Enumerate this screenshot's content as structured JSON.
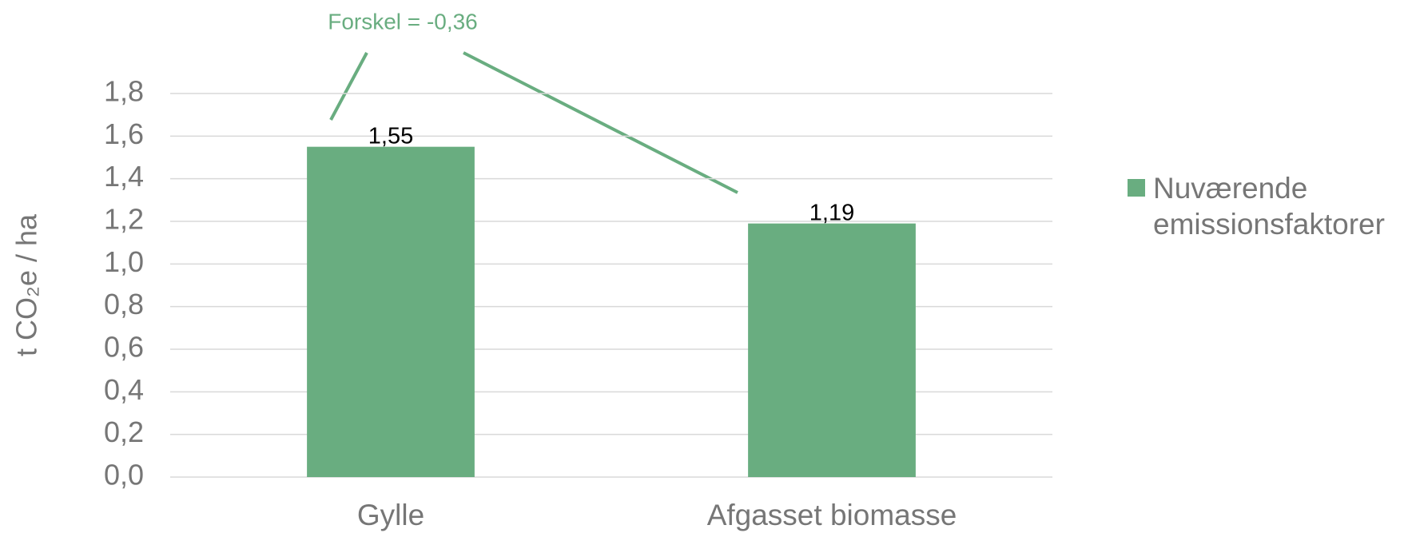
{
  "chart_data": {
    "type": "bar",
    "y_label": "t CO₂e / ha",
    "annotation": "Forskel = -0,36",
    "categories": [
      "Gylle",
      "Afgasset biomasse"
    ],
    "series": [
      {
        "name": "Nuværende emissionsfaktorer",
        "color": "#69ad80",
        "values": [
          1.55,
          1.19
        ],
        "value_labels": [
          "1,55",
          "1,19"
        ]
      }
    ],
    "ylim": [
      0,
      1.8
    ],
    "yticks": [
      {
        "value": 0,
        "label": "0,0"
      },
      {
        "value": 0.2,
        "label": "0,2"
      },
      {
        "value": 0.4,
        "label": "0,4"
      },
      {
        "value": 0.6,
        "label": "0,6"
      },
      {
        "value": 0.8,
        "label": "0,8"
      },
      {
        "value": 1.0,
        "label": "1,0"
      },
      {
        "value": 1.2,
        "label": "1,2"
      },
      {
        "value": 1.4,
        "label": "1,4"
      },
      {
        "value": 1.6,
        "label": "1,6"
      },
      {
        "value": 1.8,
        "label": "1,8"
      }
    ],
    "grid": true,
    "legend": "right"
  }
}
